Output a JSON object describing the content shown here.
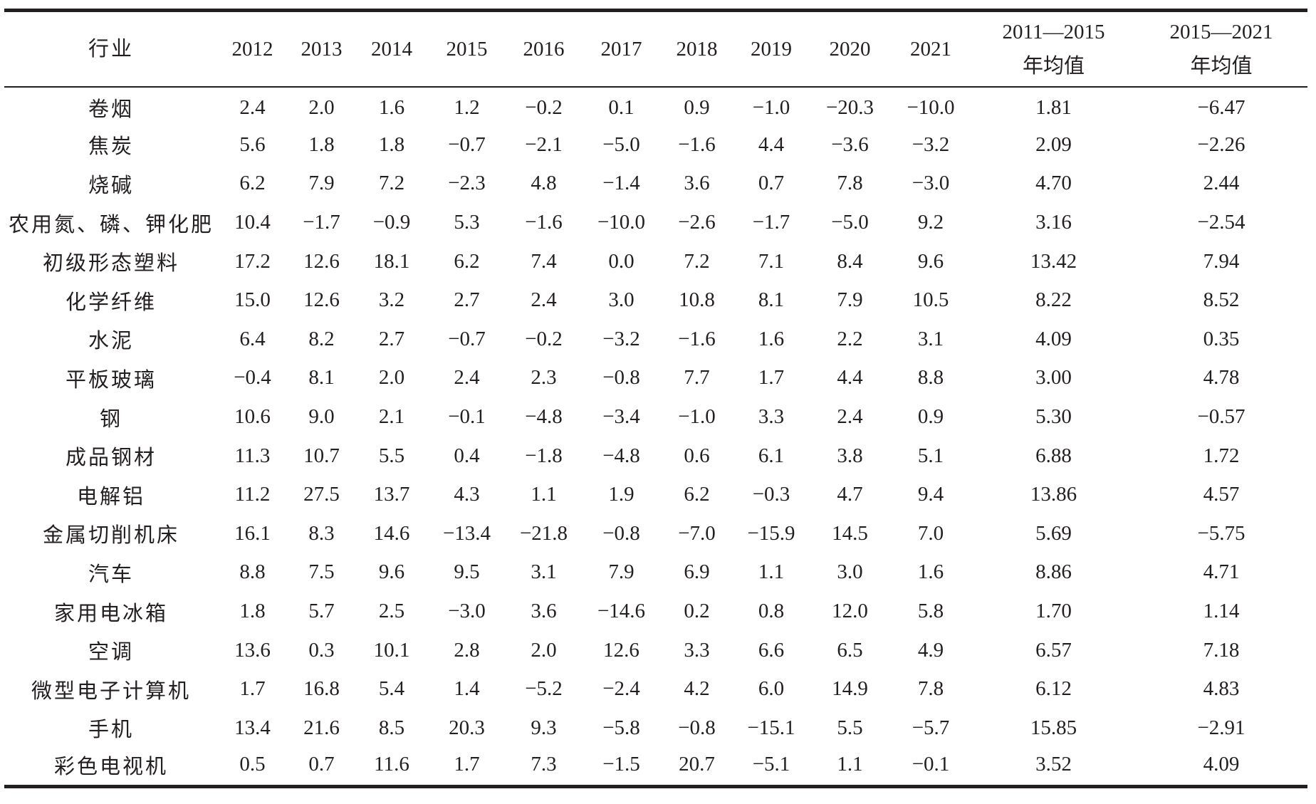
{
  "table": {
    "header": {
      "industry": "行业",
      "years": [
        "2012",
        "2013",
        "2014",
        "2015",
        "2016",
        "2017",
        "2018",
        "2019",
        "2020",
        "2021"
      ],
      "avg1_line1": "2011—2015",
      "avg1_line2": "年均值",
      "avg2_line1": "2015—2021",
      "avg2_line2": "年均值"
    },
    "rows": [
      {
        "industry": "卷烟",
        "values": [
          "2.4",
          "2.0",
          "1.6",
          "1.2",
          "−0.2",
          "0.1",
          "0.9",
          "−1.0",
          "−20.3",
          "−10.0"
        ],
        "avg1": "1.81",
        "avg2": "−6.47"
      },
      {
        "industry": "焦炭",
        "values": [
          "5.6",
          "1.8",
          "1.8",
          "−0.7",
          "−2.1",
          "−5.0",
          "−1.6",
          "4.4",
          "−3.6",
          "−3.2"
        ],
        "avg1": "2.09",
        "avg2": "−2.26"
      },
      {
        "industry": "烧碱",
        "values": [
          "6.2",
          "7.9",
          "7.2",
          "−2.3",
          "4.8",
          "−1.4",
          "3.6",
          "0.7",
          "7.8",
          "−3.0"
        ],
        "avg1": "4.70",
        "avg2": "2.44"
      },
      {
        "industry": "农用氮、磷、钾化肥",
        "values": [
          "10.4",
          "−1.7",
          "−0.9",
          "5.3",
          "−1.6",
          "−10.0",
          "−2.6",
          "−1.7",
          "−5.0",
          "9.2"
        ],
        "avg1": "3.16",
        "avg2": "−2.54"
      },
      {
        "industry": "初级形态塑料",
        "values": [
          "17.2",
          "12.6",
          "18.1",
          "6.2",
          "7.4",
          "0.0",
          "7.2",
          "7.1",
          "8.4",
          "9.6"
        ],
        "avg1": "13.42",
        "avg2": "7.94"
      },
      {
        "industry": "化学纤维",
        "values": [
          "15.0",
          "12.6",
          "3.2",
          "2.7",
          "2.4",
          "3.0",
          "10.8",
          "8.1",
          "7.9",
          "10.5"
        ],
        "avg1": "8.22",
        "avg2": "8.52"
      },
      {
        "industry": "水泥",
        "values": [
          "6.4",
          "8.2",
          "2.7",
          "−0.7",
          "−0.2",
          "−3.2",
          "−1.6",
          "1.6",
          "2.2",
          "3.1"
        ],
        "avg1": "4.09",
        "avg2": "0.35"
      },
      {
        "industry": "平板玻璃",
        "values": [
          "−0.4",
          "8.1",
          "2.0",
          "2.4",
          "2.3",
          "−0.8",
          "7.7",
          "1.7",
          "4.4",
          "8.8"
        ],
        "avg1": "3.00",
        "avg2": "4.78"
      },
      {
        "industry": "钢",
        "values": [
          "10.6",
          "9.0",
          "2.1",
          "−0.1",
          "−4.8",
          "−3.4",
          "−1.0",
          "3.3",
          "2.4",
          "0.9"
        ],
        "avg1": "5.30",
        "avg2": "−0.57"
      },
      {
        "industry": "成品钢材",
        "values": [
          "11.3",
          "10.7",
          "5.5",
          "0.4",
          "−1.8",
          "−4.8",
          "0.6",
          "6.1",
          "3.8",
          "5.1"
        ],
        "avg1": "6.88",
        "avg2": "1.72"
      },
      {
        "industry": "电解铝",
        "values": [
          "11.2",
          "27.5",
          "13.7",
          "4.3",
          "1.1",
          "1.9",
          "6.2",
          "−0.3",
          "4.7",
          "9.4"
        ],
        "avg1": "13.86",
        "avg2": "4.57"
      },
      {
        "industry": "金属切削机床",
        "values": [
          "16.1",
          "8.3",
          "14.6",
          "−13.4",
          "−21.8",
          "−0.8",
          "−7.0",
          "−15.9",
          "14.5",
          "7.0"
        ],
        "avg1": "5.69",
        "avg2": "−5.75"
      },
      {
        "industry": "汽车",
        "values": [
          "8.8",
          "7.5",
          "9.6",
          "9.5",
          "3.1",
          "7.9",
          "6.9",
          "1.1",
          "3.0",
          "1.6"
        ],
        "avg1": "8.86",
        "avg2": "4.71"
      },
      {
        "industry": "家用电冰箱",
        "values": [
          "1.8",
          "5.7",
          "2.5",
          "−3.0",
          "3.6",
          "−14.6",
          "0.2",
          "0.8",
          "12.0",
          "5.8"
        ],
        "avg1": "1.70",
        "avg2": "1.14"
      },
      {
        "industry": "空调",
        "values": [
          "13.6",
          "0.3",
          "10.1",
          "2.8",
          "2.0",
          "12.6",
          "3.3",
          "6.6",
          "6.5",
          "4.9"
        ],
        "avg1": "6.57",
        "avg2": "7.18"
      },
      {
        "industry": "微型电子计算机",
        "values": [
          "1.7",
          "16.8",
          "5.4",
          "1.4",
          "−5.2",
          "−2.4",
          "4.2",
          "6.0",
          "14.9",
          "7.8"
        ],
        "avg1": "6.12",
        "avg2": "4.83"
      },
      {
        "industry": "手机",
        "values": [
          "13.4",
          "21.6",
          "8.5",
          "20.3",
          "9.3",
          "−5.8",
          "−0.8",
          "−15.1",
          "5.5",
          "−5.7"
        ],
        "avg1": "15.85",
        "avg2": "−2.91"
      },
      {
        "industry": "彩色电视机",
        "values": [
          "0.5",
          "0.7",
          "11.6",
          "1.7",
          "7.3",
          "−1.5",
          "20.7",
          "−5.1",
          "1.1",
          "−0.1"
        ],
        "avg1": "3.52",
        "avg2": "4.09"
      }
    ]
  }
}
